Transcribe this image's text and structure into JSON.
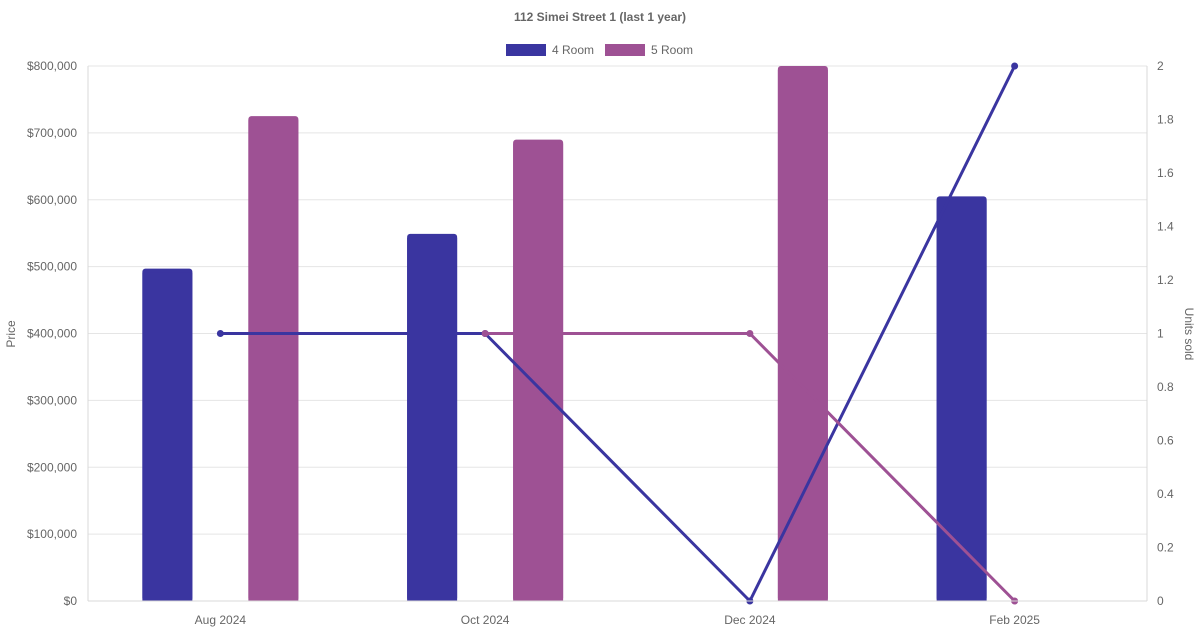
{
  "chart_data": {
    "type": "bar",
    "title": "112 Simei Street 1 (last 1 year)",
    "categories": [
      "Aug 2024",
      "Oct 2024",
      "Dec 2024",
      "Feb 2025"
    ],
    "y_left": {
      "label": "Price",
      "min": 0,
      "max": 800000,
      "step": 100000,
      "ticks": [
        "$0",
        "$100,000",
        "$200,000",
        "$300,000",
        "$400,000",
        "$500,000",
        "$600,000",
        "$700,000",
        "$800,000"
      ]
    },
    "y_right": {
      "label": "Units sold",
      "min": 0,
      "max": 2,
      "step": 0.2,
      "ticks": [
        "0",
        "0.2",
        "0.4",
        "0.6",
        "0.8",
        "1",
        "1.2",
        "1.4",
        "1.6",
        "1.8",
        "2"
      ]
    },
    "legend": {
      "position": "top",
      "items": [
        "4 Room",
        "5 Room"
      ]
    },
    "grid": true,
    "bar_series": [
      {
        "name": "4 Room",
        "color": "#3a35a0",
        "values": [
          497000,
          549000,
          null,
          605000
        ]
      },
      {
        "name": "5 Room",
        "color": "#9e5194",
        "values": [
          725000,
          690000,
          800000,
          null
        ]
      }
    ],
    "line_series": [
      {
        "name": "4 Room",
        "color": "#3a35a0",
        "values": [
          1,
          1,
          0,
          2
        ]
      },
      {
        "name": "5 Room",
        "color": "#9e5194",
        "values": [
          null,
          1,
          1,
          0
        ]
      }
    ]
  }
}
